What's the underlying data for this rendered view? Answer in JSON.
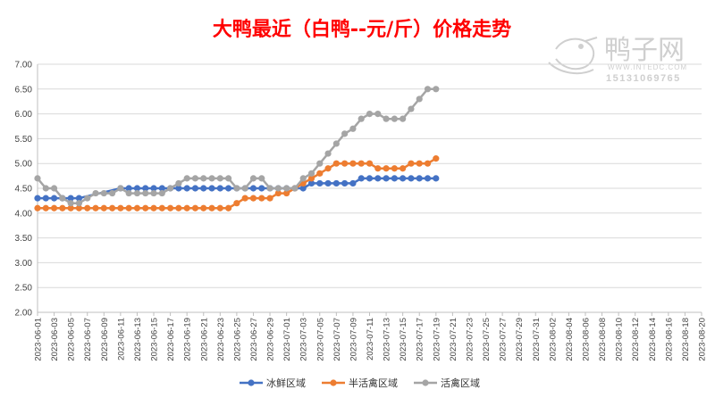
{
  "chart_data": {
    "type": "line",
    "title": "大鸭最近（白鸭--元/斤）价格走势",
    "ylim": [
      2.0,
      7.0
    ],
    "yticks": [
      "7.00",
      "6.50",
      "6.00",
      "5.50",
      "5.00",
      "4.50",
      "4.00",
      "3.50",
      "3.00",
      "2.50",
      "2.00"
    ],
    "x_start": "2023-06-01",
    "x_end": "2023-08-20",
    "x_tick_labels": [
      "2023-06-01",
      "2023-06-03",
      "2023-06-05",
      "2023-06-07",
      "2023-06-09",
      "2023-06-11",
      "2023-06-13",
      "2023-06-15",
      "2023-06-17",
      "2023-06-19",
      "2023-06-21",
      "2023-06-23",
      "2023-06-25",
      "2023-06-27",
      "2023-06-29",
      "2023-07-01",
      "2023-07-03",
      "2023-07-05",
      "2023-07-07",
      "2023-07-09",
      "2023-07-11",
      "2023-07-13",
      "2023-07-15",
      "2023-07-17",
      "2023-07-19",
      "2023-07-21",
      "2023-07-23",
      "2023-07-25",
      "2023-07-27",
      "2023-07-29",
      "2023-07-31",
      "2023-08-02",
      "2023-08-04",
      "2023-08-06",
      "2023-08-08",
      "2023-08-10",
      "2023-08-12",
      "2023-08-14",
      "2023-08-16",
      "2023-08-18",
      "2023-08-20"
    ],
    "grid": true,
    "legend_position": "bottom",
    "series": [
      {
        "name": "冰鲜区域",
        "color": "#4472C4",
        "x": [
          "2023-06-01",
          "2023-06-02",
          "2023-06-03",
          "2023-06-04",
          "2023-06-05",
          "2023-06-06",
          "2023-06-11",
          "2023-06-12",
          "2023-06-13",
          "2023-06-14",
          "2023-06-15",
          "2023-06-16",
          "2023-06-17",
          "2023-06-18",
          "2023-06-19",
          "2023-06-20",
          "2023-06-21",
          "2023-06-22",
          "2023-06-23",
          "2023-06-24",
          "2023-06-25",
          "2023-06-26",
          "2023-06-27",
          "2023-06-28",
          "2023-06-29",
          "2023-06-30",
          "2023-07-01",
          "2023-07-02",
          "2023-07-03",
          "2023-07-04",
          "2023-07-05",
          "2023-07-06",
          "2023-07-07",
          "2023-07-08",
          "2023-07-09",
          "2023-07-10",
          "2023-07-11",
          "2023-07-12",
          "2023-07-13",
          "2023-07-14",
          "2023-07-15",
          "2023-07-16",
          "2023-07-17",
          "2023-07-18",
          "2023-07-19"
        ],
        "y": [
          4.3,
          4.3,
          4.3,
          4.3,
          4.3,
          4.3,
          4.5,
          4.5,
          4.5,
          4.5,
          4.5,
          4.5,
          4.5,
          4.5,
          4.5,
          4.5,
          4.5,
          4.5,
          4.5,
          4.5,
          4.5,
          4.5,
          4.5,
          4.5,
          4.5,
          4.5,
          4.5,
          4.5,
          4.5,
          4.6,
          4.6,
          4.6,
          4.6,
          4.6,
          4.6,
          4.7,
          4.7,
          4.7,
          4.7,
          4.7,
          4.7,
          4.7,
          4.7,
          4.7,
          4.7
        ]
      },
      {
        "name": "半活禽区域",
        "color": "#ED7D31",
        "x": [
          "2023-06-01",
          "2023-06-02",
          "2023-06-03",
          "2023-06-04",
          "2023-06-05",
          "2023-06-06",
          "2023-06-07",
          "2023-06-08",
          "2023-06-09",
          "2023-06-10",
          "2023-06-11",
          "2023-06-12",
          "2023-06-13",
          "2023-06-14",
          "2023-06-15",
          "2023-06-16",
          "2023-06-17",
          "2023-06-18",
          "2023-06-19",
          "2023-06-20",
          "2023-06-21",
          "2023-06-22",
          "2023-06-23",
          "2023-06-24",
          "2023-06-25",
          "2023-06-26",
          "2023-06-27",
          "2023-06-28",
          "2023-06-29",
          "2023-06-30",
          "2023-07-01",
          "2023-07-02",
          "2023-07-03",
          "2023-07-04",
          "2023-07-05",
          "2023-07-06",
          "2023-07-07",
          "2023-07-08",
          "2023-07-09",
          "2023-07-10",
          "2023-07-11",
          "2023-07-12",
          "2023-07-13",
          "2023-07-14",
          "2023-07-15",
          "2023-07-16",
          "2023-07-17",
          "2023-07-18",
          "2023-07-19"
        ],
        "y": [
          4.1,
          4.1,
          4.1,
          4.1,
          4.1,
          4.1,
          4.1,
          4.1,
          4.1,
          4.1,
          4.1,
          4.1,
          4.1,
          4.1,
          4.1,
          4.1,
          4.1,
          4.1,
          4.1,
          4.1,
          4.1,
          4.1,
          4.1,
          4.1,
          4.2,
          4.3,
          4.3,
          4.3,
          4.3,
          4.4,
          4.4,
          4.5,
          4.6,
          4.7,
          4.8,
          4.9,
          5.0,
          5.0,
          5.0,
          5.0,
          5.0,
          4.9,
          4.9,
          4.9,
          4.9,
          5.0,
          5.0,
          5.0,
          5.1
        ]
      },
      {
        "name": "活禽区域",
        "color": "#A5A5A5",
        "x": [
          "2023-06-01",
          "2023-06-02",
          "2023-06-03",
          "2023-06-04",
          "2023-06-05",
          "2023-06-06",
          "2023-06-07",
          "2023-06-08",
          "2023-06-09",
          "2023-06-10",
          "2023-06-11",
          "2023-06-12",
          "2023-06-13",
          "2023-06-14",
          "2023-06-15",
          "2023-06-16",
          "2023-06-17",
          "2023-06-18",
          "2023-06-19",
          "2023-06-20",
          "2023-06-21",
          "2023-06-22",
          "2023-06-23",
          "2023-06-24",
          "2023-06-25",
          "2023-06-26",
          "2023-06-27",
          "2023-06-28",
          "2023-06-29",
          "2023-06-30",
          "2023-07-01",
          "2023-07-02",
          "2023-07-03",
          "2023-07-04",
          "2023-07-05",
          "2023-07-06",
          "2023-07-07",
          "2023-07-08",
          "2023-07-09",
          "2023-07-10",
          "2023-07-11",
          "2023-07-12",
          "2023-07-13",
          "2023-07-14",
          "2023-07-15",
          "2023-07-16",
          "2023-07-17",
          "2023-07-18",
          "2023-07-19"
        ],
        "y": [
          4.7,
          4.5,
          4.5,
          4.3,
          4.2,
          4.2,
          4.3,
          4.4,
          4.4,
          4.4,
          4.5,
          4.4,
          4.4,
          4.4,
          4.4,
          4.4,
          4.5,
          4.6,
          4.7,
          4.7,
          4.7,
          4.7,
          4.7,
          4.7,
          4.5,
          4.5,
          4.7,
          4.7,
          4.5,
          4.5,
          4.5,
          4.5,
          4.7,
          4.8,
          5.0,
          5.2,
          5.4,
          5.6,
          5.7,
          5.9,
          6.0,
          6.0,
          5.9,
          5.9,
          5.9,
          6.1,
          6.3,
          6.5,
          6.5
        ]
      }
    ]
  },
  "watermark": {
    "brand": "鸭子网",
    "site": "WWW.INTEDC.COM",
    "phone": "15131069765"
  }
}
